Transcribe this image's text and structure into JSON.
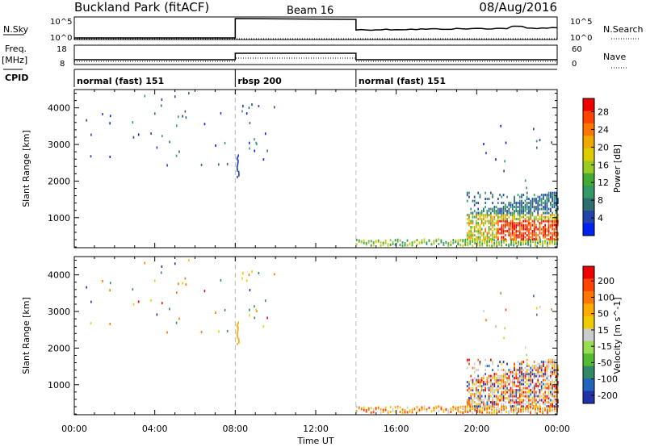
{
  "header": {
    "station": "Buckland Park (fitACF)",
    "beam": "Beam 16",
    "date": "08/Aug/2016"
  },
  "status_panels": {
    "nsky_label": "N.Sky",
    "nsky_ticks": [
      "10^5",
      "10^0"
    ],
    "nsearch_label": "N.Search",
    "nsearch_ticks": [
      "10^5",
      "10^0"
    ],
    "freq_label": "Freq.",
    "freq_unit": "[MHz]",
    "freq_ticks": [
      "18",
      "8"
    ],
    "nave_label": "Nave",
    "nave_ticks": [
      "60",
      "0"
    ],
    "cpid_label": "CPID",
    "cpid_segments": [
      {
        "label": "normal (fast) 151",
        "start": 0,
        "end": 8
      },
      {
        "label": "rbsp 200",
        "start": 8,
        "end": 14
      },
      {
        "label": "normal (fast) 151",
        "start": 14,
        "end": 24
      }
    ]
  },
  "chart_data": [
    {
      "type": "heatmap",
      "panel": "power",
      "ylabel": "Slant Range [km]",
      "xlabel": "",
      "x_range_hours": [
        0,
        24
      ],
      "ylim": [
        180,
        4500
      ],
      "yticks": [
        1000,
        2000,
        3000,
        4000
      ],
      "colorbar": {
        "label": "Power [dB]",
        "ticks": [
          "4",
          "8",
          "12",
          "16",
          "20",
          "24",
          "28"
        ],
        "colors": [
          "#0022ee",
          "#2244aa",
          "#2e6e6e",
          "#339966",
          "#44aa33",
          "#99cc22",
          "#ddcc00",
          "#eeaa00",
          "#ff7700",
          "#ff4400",
          "#ee0000"
        ]
      }
    },
    {
      "type": "heatmap",
      "panel": "velocity",
      "ylabel": "Slant Range [km]",
      "xlabel": "Time UT",
      "x_range_hours": [
        0,
        24
      ],
      "ylim": [
        180,
        4500
      ],
      "yticks": [
        1000,
        2000,
        3000,
        4000
      ],
      "xticks": [
        "00:00",
        "04:00",
        "08:00",
        "12:00",
        "16:00",
        "20:00",
        "00:00"
      ],
      "colorbar": {
        "label": "Velocity [m s^-1]",
        "ticks": [
          "200",
          "100",
          "50",
          "15",
          "-15",
          "-50",
          "-100",
          "-200"
        ],
        "colors": [
          "#2233aa",
          "#2266bb",
          "#338866",
          "#55bb33",
          "#99dd55",
          "#cccccc",
          "#eecc00",
          "#ffaa00",
          "#ff7700",
          "#ff4400",
          "#ee0000"
        ]
      }
    }
  ]
}
